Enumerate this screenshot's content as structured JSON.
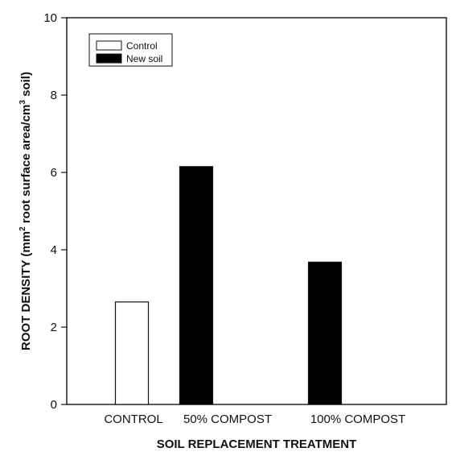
{
  "chart_data": {
    "type": "bar",
    "categories": [
      "CONTROL",
      "50% COMPOST",
      "100% COMPOST"
    ],
    "series": [
      {
        "name": "Control",
        "color": "#ffffff",
        "values": [
          2.65,
          null,
          null
        ]
      },
      {
        "name": "New soil",
        "color": "#000000",
        "values": [
          null,
          6.15,
          3.68
        ]
      }
    ],
    "xlabel": "SOIL REPLACEMENT TREATMENT",
    "ylabel": {
      "prefix": "ROOT DENSITY (mm",
      "sup1": "2",
      "middle": " root surface area/cm",
      "sup2": "3",
      "suffix": " soil)"
    },
    "ylim": [
      0,
      10
    ],
    "yticks": [
      0,
      2,
      4,
      6,
      8,
      10
    ],
    "grid": false,
    "legend": "top-left"
  }
}
